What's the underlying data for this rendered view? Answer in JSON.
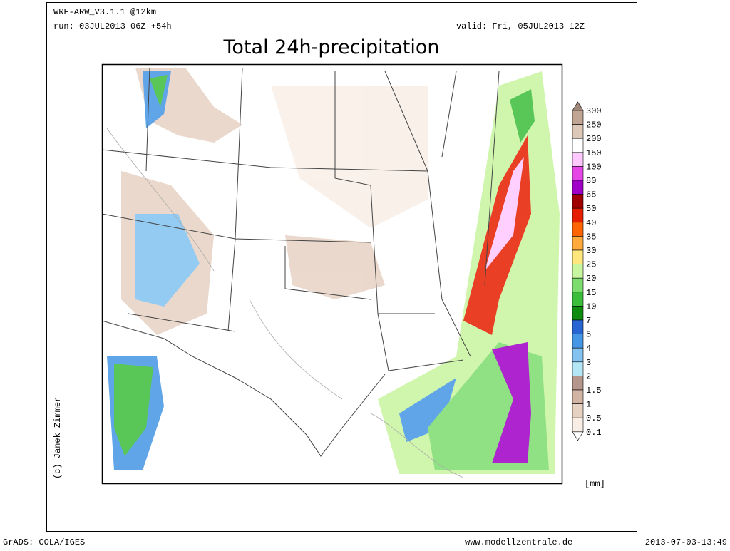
{
  "header": {
    "model": "WRF-ARW_V3.1.1 @12km",
    "run": "run: 03JUL2013 06Z +54h",
    "valid": "valid: Fri, 05JUL2013 12Z",
    "title": "Total 24h-precipitation"
  },
  "legend": {
    "levels": [
      300,
      250,
      200,
      150,
      100,
      80,
      65,
      50,
      40,
      35,
      30,
      25,
      20,
      15,
      10,
      7,
      5,
      4,
      3,
      2,
      1.5,
      1,
      0.5,
      0.1
    ],
    "colors": [
      "#a08878",
      "#c0a494",
      "#dcc8b8",
      "#ffffff",
      "#ffc8ff",
      "#e646e6",
      "#a000c8",
      "#a00000",
      "#e61e00",
      "#ff6400",
      "#ffaa3c",
      "#ffe67d",
      "#c8f5a0",
      "#7ddc6e",
      "#3cbe3c",
      "#0f8c0f",
      "#2864d2",
      "#4696e6",
      "#82c3f0",
      "#b4e6f5",
      "#b4968c",
      "#d2b4a5",
      "#e6d2c3",
      "#f8eee6",
      "#ffffff"
    ],
    "unit": "[mm]"
  },
  "credit": "(c) Janek Zimmer",
  "footer": {
    "left": "GrADS: COLA/IGES",
    "center": "www.modellzentrale.de",
    "right": "2013-07-03-13:49"
  }
}
